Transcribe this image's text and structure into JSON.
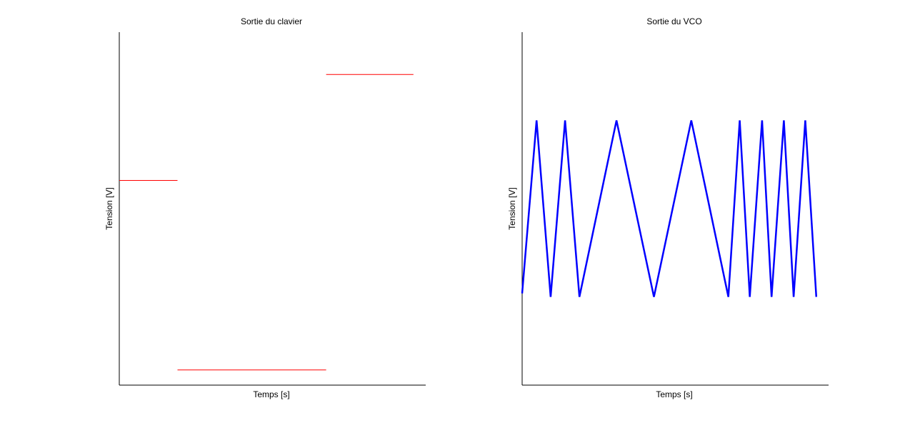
{
  "chart_data": [
    {
      "type": "line",
      "title": "Sortie du clavier",
      "xlabel": "Temps [s]",
      "ylabel": "Tension [V]",
      "xlim": [
        0,
        1
      ],
      "ylim": [
        0,
        1
      ],
      "grid": false,
      "ticks": false,
      "color": "#ff0000",
      "series": [
        {
          "x": [
            0.0,
            0.19
          ],
          "y": [
            0.58,
            0.58
          ]
        },
        {
          "x": [
            0.19,
            0.675
          ],
          "y": [
            0.043,
            0.043
          ]
        },
        {
          "x": [
            0.675,
            0.96
          ],
          "y": [
            0.88,
            0.88
          ]
        }
      ]
    },
    {
      "type": "line",
      "title": "Sortie du VCO",
      "xlabel": "Temps [s]",
      "ylabel": "Tension [V]",
      "xlim": [
        0,
        1
      ],
      "ylim": [
        0,
        1
      ],
      "grid": false,
      "ticks": false,
      "color": "#0000ff",
      "series": [
        {
          "x": [
            0.0,
            0.047,
            0.093,
            0.14,
            0.187,
            0.308,
            0.43,
            0.552,
            0.673,
            0.71,
            0.743,
            0.783,
            0.814,
            0.854,
            0.886,
            0.924,
            0.96
          ],
          "y": [
            0.26,
            0.75,
            0.25,
            0.75,
            0.25,
            0.75,
            0.25,
            0.75,
            0.25,
            0.75,
            0.25,
            0.75,
            0.25,
            0.75,
            0.25,
            0.75,
            0.25
          ]
        }
      ]
    }
  ]
}
